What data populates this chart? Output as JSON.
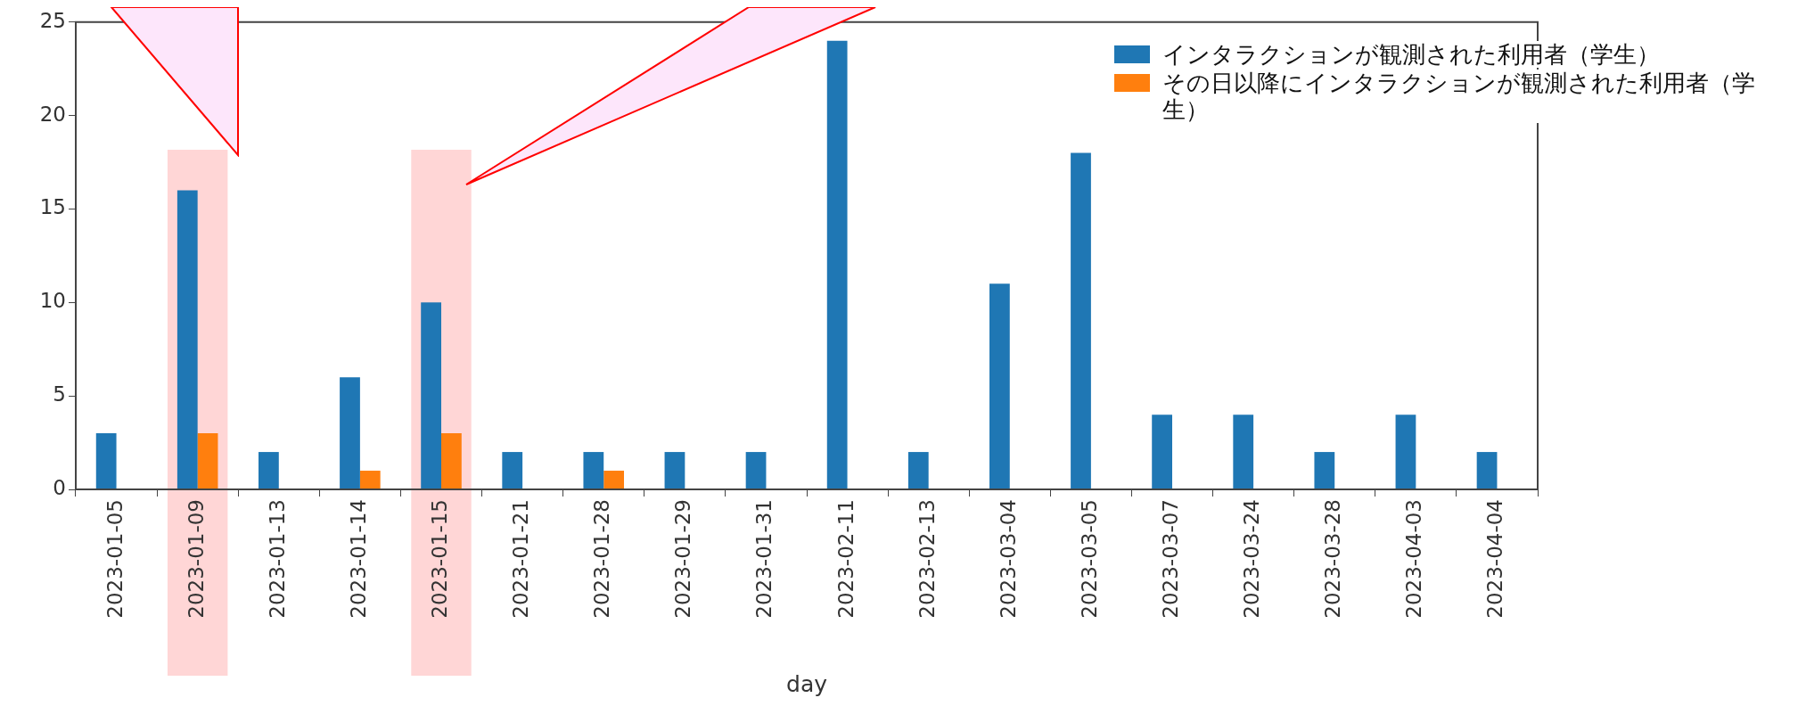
{
  "chart_data": {
    "type": "bar",
    "categories": [
      "2023-01-05",
      "2023-01-09",
      "2023-01-13",
      "2023-01-14",
      "2023-01-15",
      "2023-01-21",
      "2023-01-28",
      "2023-01-29",
      "2023-01-31",
      "2023-02-11",
      "2023-02-13",
      "2023-03-04",
      "2023-03-05",
      "2023-03-07",
      "2023-03-24",
      "2023-03-28",
      "2023-04-03",
      "2023-04-04"
    ],
    "series": [
      {
        "name": "インタラクションが観測された利用者（学生）",
        "color": "#1f77b4",
        "values": [
          3,
          16,
          2,
          6,
          10,
          2,
          2,
          2,
          2,
          24,
          2,
          11,
          18,
          4,
          4,
          2,
          4,
          2
        ]
      },
      {
        "name": "その日以降にインタラクションが観測された利用者（学生）",
        "color": "#ff7f0e",
        "values": [
          null,
          3,
          null,
          1,
          3,
          null,
          1,
          null,
          null,
          null,
          null,
          null,
          null,
          null,
          null,
          null,
          null,
          null
        ]
      }
    ],
    "xlabel": "day",
    "ylim": [
      0,
      25
    ],
    "yticks": [
      0,
      5,
      10,
      15,
      20,
      25
    ],
    "grid": false,
    "legend": "top right",
    "bands": [
      {
        "axis": "x",
        "from": "2023-01-09",
        "to": "2023-01-09",
        "color": "#ffcccc"
      },
      {
        "axis": "x",
        "from": "2023-01-15",
        "to": "2023-01-15",
        "color": "#ffcccc"
      }
    ]
  }
}
